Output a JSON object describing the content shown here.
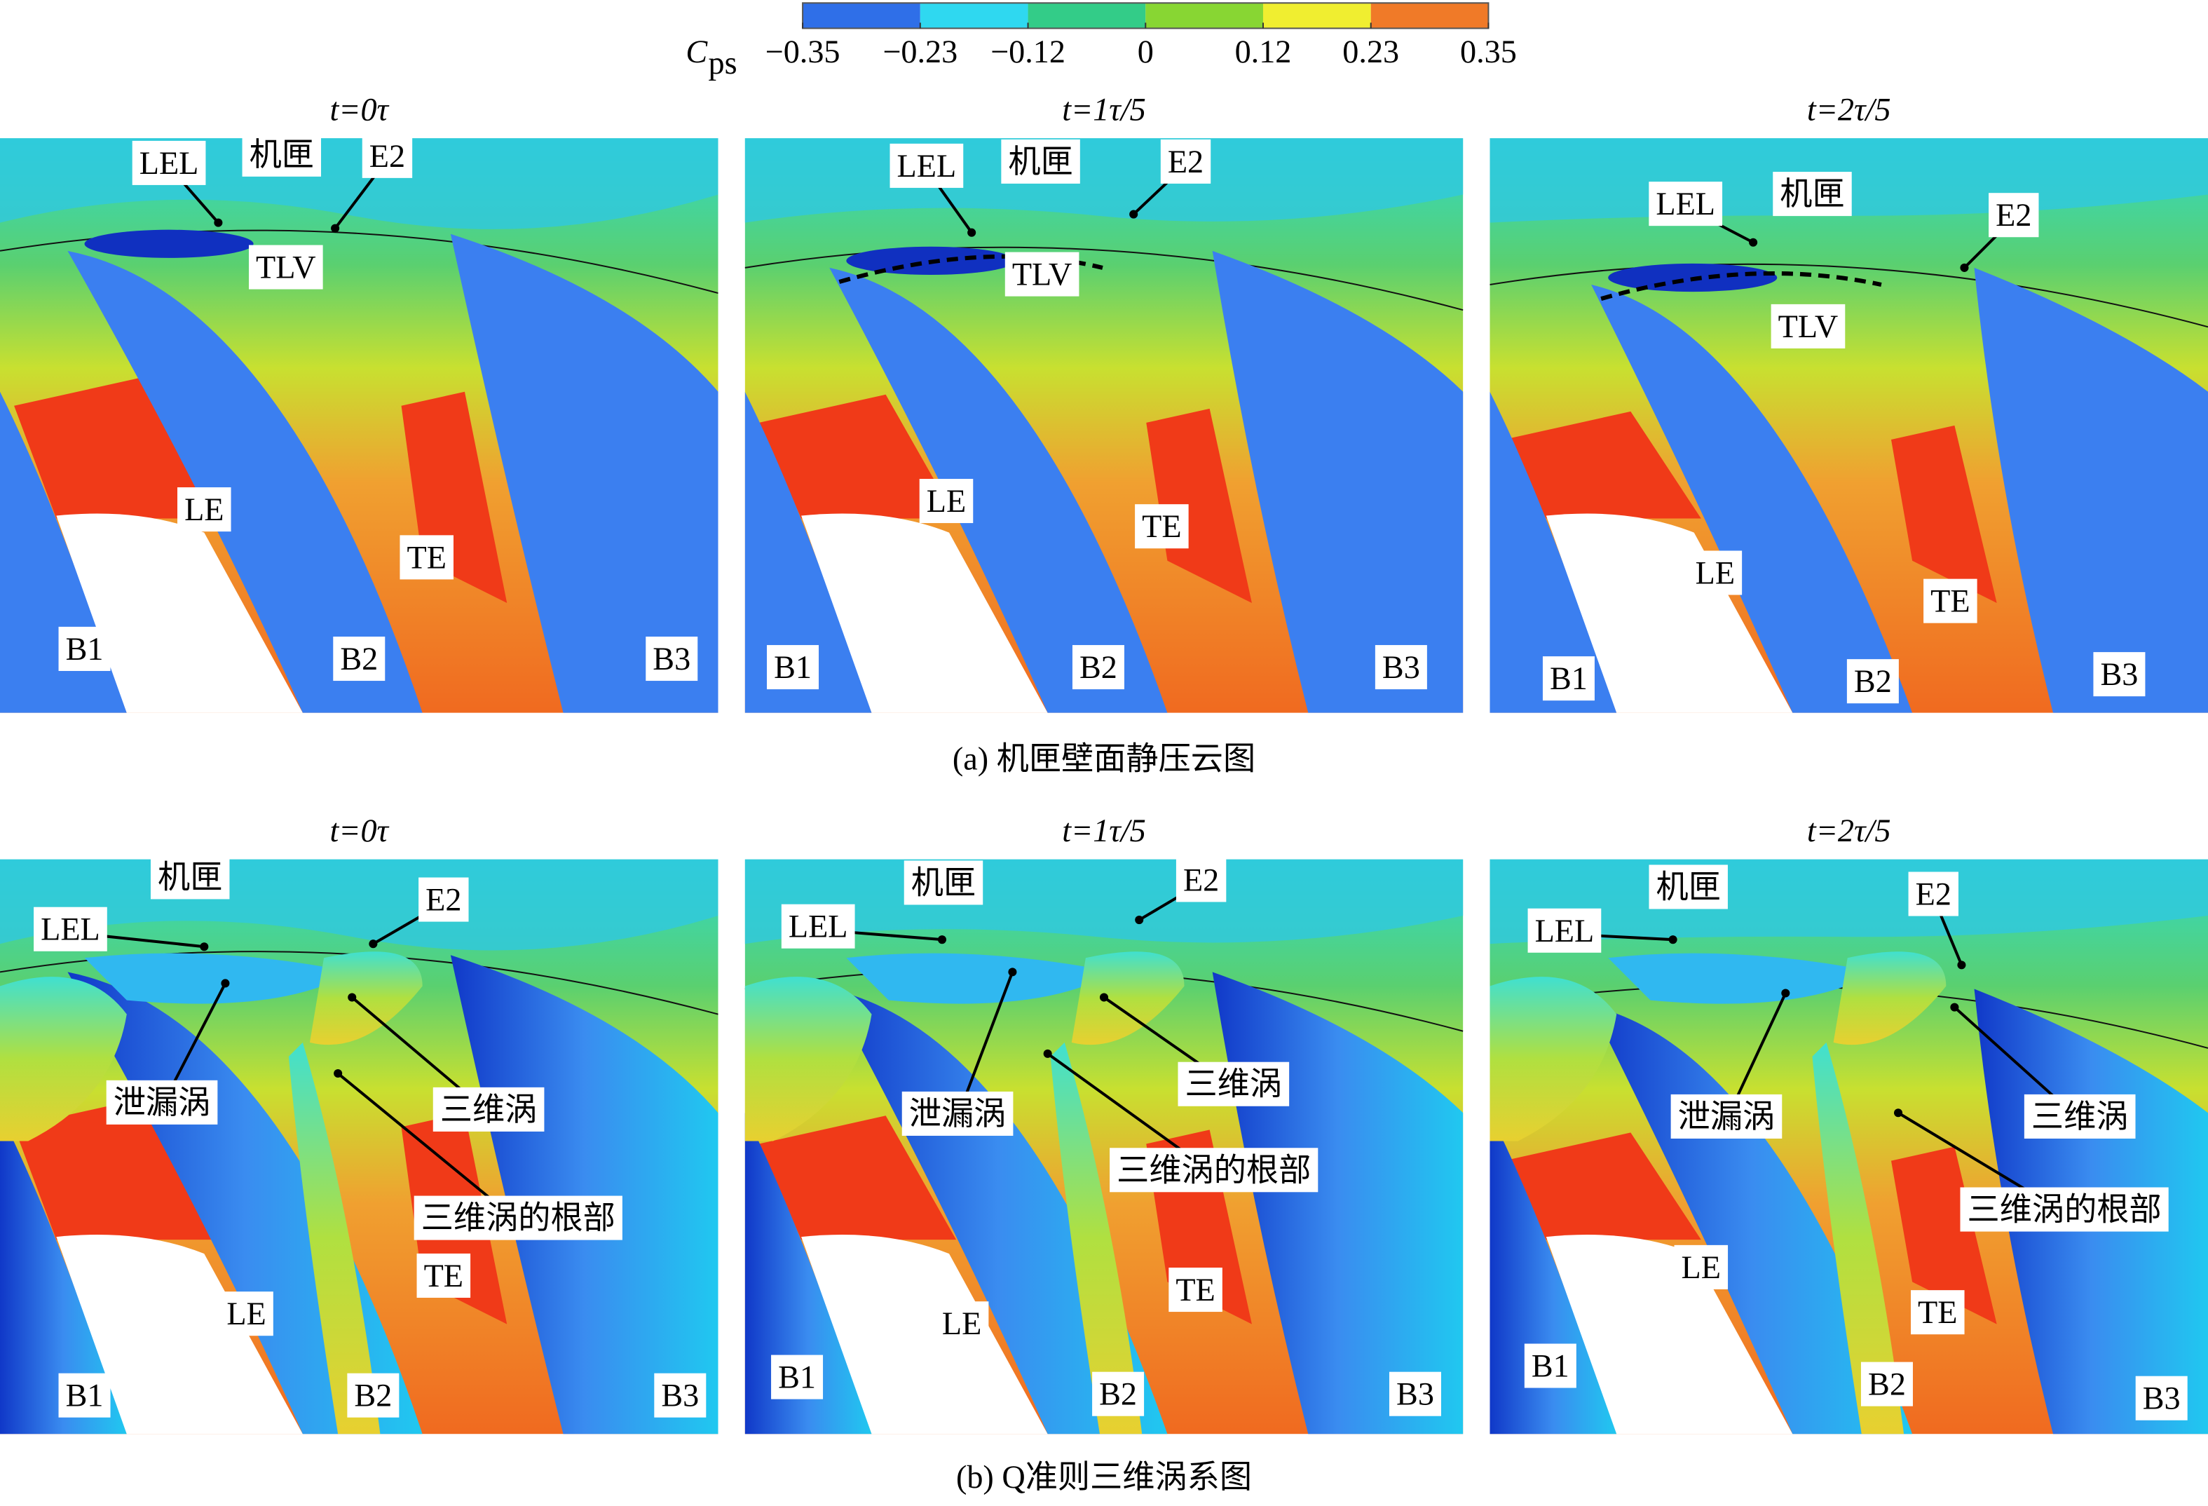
{
  "colorbar": {
    "symbol": "C",
    "subscript": "ps",
    "ticks": [
      {
        "value": -0.35,
        "label": "−0.35"
      },
      {
        "value": -0.23,
        "label": "−0.23"
      },
      {
        "value": -0.12,
        "label": "−0.12"
      },
      0,
      0.12,
      0.23,
      0.35
    ],
    "colors": [
      "#2f6fe8",
      "#2fd8f0",
      "#33cc88",
      "#88d633",
      "#f0ee30",
      "#f07a28"
    ]
  },
  "rows": [
    {
      "caption": "(a) 机匣壁面静压云图",
      "panels": [
        {
          "title": "t=0τ",
          "labels": [
            "LEL",
            "机匣",
            "E2",
            "TLV",
            "LE",
            "TE",
            "B1",
            "B2",
            "B3"
          ]
        },
        {
          "title": "t=1τ/5",
          "labels": [
            "LEL",
            "机匣",
            "E2",
            "TLV",
            "LE",
            "TE",
            "B1",
            "B2",
            "B3"
          ]
        },
        {
          "title": "t=2τ/5",
          "labels": [
            "LEL",
            "机匣",
            "E2",
            "TLV",
            "LE",
            "TE",
            "B1",
            "B2",
            "B3"
          ]
        }
      ]
    },
    {
      "caption": "(b) Q准则三维涡系图",
      "panels": [
        {
          "title": "t=0τ",
          "labels": [
            "机匣",
            "LEL",
            "E2",
            "泄漏涡",
            "三维涡",
            "三维涡的根部",
            "LE",
            "TE",
            "B1",
            "B2",
            "B3"
          ]
        },
        {
          "title": "t=1τ/5",
          "labels": [
            "机匣",
            "LEL",
            "E2",
            "泄漏涡",
            "三维涡",
            "三维涡的根部",
            "LE",
            "TE",
            "B1",
            "B2",
            "B3"
          ]
        },
        {
          "title": "t=2τ/5",
          "labels": [
            "机匣",
            "LEL",
            "E2",
            "泄漏涡",
            "三维涡",
            "三维涡的根部",
            "LE",
            "TE",
            "B1",
            "B2",
            "B3"
          ]
        }
      ]
    }
  ]
}
